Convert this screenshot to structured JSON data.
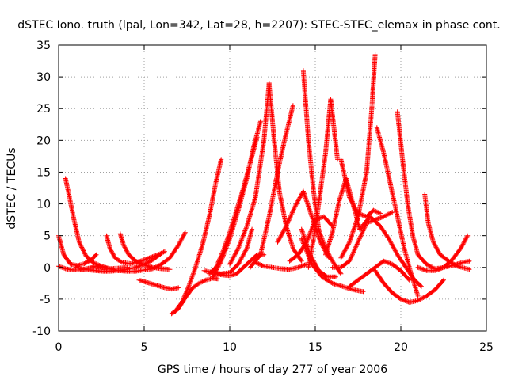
{
  "chart_data": {
    "type": "scatter",
    "title": "dSTEC Iono. truth (lpal, Lon=342, Lat=28, h=2207): STEC-STEC_elemax in phase cont.",
    "xlabel": "GPS time / hours of day 277 of year 2006",
    "ylabel": "dSTEC  / TECUs",
    "xlim": [
      0,
      25
    ],
    "ylim": [
      -10,
      35
    ],
    "xticks": [
      "0",
      "5",
      "10",
      "15",
      "20",
      "25"
    ],
    "yticks": [
      "-10",
      "-5",
      "0",
      "5",
      "10",
      "15",
      "20",
      "25",
      "30",
      "35"
    ],
    "grid": true,
    "marker": "+",
    "color": "#ff0000",
    "series": [
      {
        "x": [
          0.0,
          0.3,
          0.7,
          1.1,
          1.5,
          1.9,
          2.2
        ],
        "y": [
          5.0,
          2.0,
          0.5,
          0.3,
          0.6,
          1.2,
          2.0
        ]
      },
      {
        "x": [
          0.4,
          0.6,
          0.9,
          1.2,
          1.6,
          2.0,
          2.5,
          3.0,
          3.5,
          4.0
        ],
        "y": [
          14.0,
          11.5,
          7.5,
          4.0,
          1.8,
          0.8,
          0.2,
          -0.2,
          -0.1,
          0.0
        ]
      },
      {
        "x": [
          0.0,
          0.4,
          0.8,
          1.2,
          1.6,
          2.0
        ],
        "y": [
          0.2,
          -0.2,
          -0.4,
          -0.4,
          -0.2,
          0.0
        ]
      },
      {
        "x": [
          1.0,
          1.4,
          1.8,
          2.2,
          2.6,
          3.0,
          3.5,
          4.0,
          4.5,
          5.0,
          5.5,
          6.0
        ],
        "y": [
          0.0,
          -0.3,
          -0.4,
          -0.5,
          -0.6,
          -0.6,
          -0.5,
          -0.3,
          0.0,
          0.5,
          1.2,
          2.2
        ]
      },
      {
        "x": [
          2.8,
          3.0,
          3.3,
          3.7,
          4.2,
          4.8,
          5.3,
          5.8,
          6.2
        ],
        "y": [
          5.0,
          3.0,
          1.5,
          0.8,
          0.6,
          1.0,
          1.5,
          2.0,
          2.5
        ]
      },
      {
        "x": [
          3.6,
          3.8,
          4.1,
          4.5,
          5.0,
          5.5,
          6.0,
          6.5
        ],
        "y": [
          5.3,
          3.5,
          2.0,
          1.0,
          0.4,
          0.0,
          -0.2,
          -0.3
        ]
      },
      {
        "x": [
          2.0,
          2.5,
          3.0,
          3.5,
          4.0,
          4.5,
          5.0,
          5.5,
          6.0,
          6.5,
          7.0,
          7.4
        ],
        "y": [
          0.2,
          0.0,
          -0.2,
          -0.5,
          -0.6,
          -0.6,
          -0.4,
          -0.2,
          0.5,
          1.5,
          3.5,
          5.5
        ]
      },
      {
        "x": [
          4.7,
          5.2,
          5.7,
          6.2,
          6.6,
          7.0
        ],
        "y": [
          -2.0,
          -2.4,
          -2.8,
          -3.2,
          -3.4,
          -3.2
        ]
      },
      {
        "x": [
          6.6,
          7.0,
          7.4,
          7.8,
          8.2,
          8.6,
          9.0,
          9.3
        ],
        "y": [
          -7.3,
          -6.5,
          -4.8,
          -3.3,
          -2.5,
          -2.0,
          -1.7,
          -1.8
        ]
      },
      {
        "x": [
          6.8,
          7.2,
          7.6,
          8.0,
          8.4,
          8.8,
          9.2,
          9.5
        ],
        "y": [
          -7.0,
          -5.5,
          -3.0,
          0.0,
          3.5,
          8.0,
          13.5,
          17.0
        ]
      },
      {
        "x": [
          8.5,
          9.0,
          9.5,
          10.0,
          10.5,
          11.0,
          11.3
        ],
        "y": [
          -0.5,
          -0.8,
          -1.0,
          -0.8,
          0.5,
          3.0,
          6.0
        ]
      },
      {
        "x": [
          9.2,
          9.6,
          10.0,
          10.4,
          10.8,
          11.2,
          11.6,
          12.0
        ],
        "y": [
          -1.0,
          -1.2,
          -1.3,
          -1.0,
          0.0,
          1.0,
          2.0,
          2.0
        ]
      },
      {
        "x": [
          9.0,
          9.5,
          10.0,
          10.5,
          11.0,
          11.4,
          11.8
        ],
        "y": [
          -1.5,
          1.0,
          4.5,
          9.0,
          14.0,
          19.0,
          23.0
        ]
      },
      {
        "x": [
          8.8,
          9.2,
          9.6,
          10.0,
          10.4,
          10.8,
          11.2,
          11.6
        ],
        "y": [
          -1.0,
          0.0,
          2.5,
          5.5,
          9.0,
          12.5,
          16.5,
          20.5
        ]
      },
      {
        "x": [
          10.0,
          10.5,
          11.0,
          11.5,
          12.0,
          12.3
        ],
        "y": [
          0.5,
          3.0,
          6.5,
          11.0,
          20.0,
          29.0
        ]
      },
      {
        "x": [
          12.3,
          12.6,
          12.9,
          13.3,
          13.7,
          14.2
        ],
        "y": [
          29.0,
          20.0,
          12.0,
          6.5,
          3.0,
          1.0
        ]
      },
      {
        "x": [
          11.2,
          11.8,
          12.3,
          12.8,
          13.2,
          13.7
        ],
        "y": [
          0.0,
          2.0,
          8.0,
          15.0,
          20.0,
          25.5
        ]
      },
      {
        "x": [
          11.5,
          12.0,
          12.5,
          13.0,
          13.5,
          14.0,
          14.5
        ],
        "y": [
          0.8,
          0.2,
          0.0,
          -0.2,
          -0.3,
          0.0,
          0.5
        ]
      },
      {
        "x": [
          12.8,
          13.3,
          13.8,
          14.3,
          14.8,
          15.3,
          15.8
        ],
        "y": [
          4.0,
          6.5,
          9.5,
          12.0,
          8.0,
          4.0,
          1.5
        ]
      },
      {
        "x": [
          14.3,
          14.6,
          14.9,
          15.2,
          15.6,
          16.0,
          16.5
        ],
        "y": [
          31.0,
          20.0,
          12.0,
          6.0,
          3.0,
          1.0,
          -1.0
        ]
      },
      {
        "x": [
          14.2,
          14.8,
          15.4,
          16.0,
          16.6,
          17.2,
          17.8
        ],
        "y": [
          4.5,
          0.5,
          -1.5,
          -2.5,
          -3.0,
          -3.5,
          -3.8
        ]
      },
      {
        "x": [
          14.2,
          14.7,
          15.2,
          15.7,
          16.2
        ],
        "y": [
          6.0,
          2.0,
          -0.5,
          -1.5,
          -1.5
        ]
      },
      {
        "x": [
          14.6,
          15.0,
          15.3,
          15.6,
          15.9,
          16.3
        ],
        "y": [
          0.0,
          6.0,
          12.0,
          18.0,
          26.5,
          17.0
        ]
      },
      {
        "x": [
          15.6,
          16.0,
          16.4,
          16.8,
          17.2,
          17.6
        ],
        "y": [
          2.0,
          5.5,
          10.5,
          14.0,
          10.0,
          6.0
        ]
      },
      {
        "x": [
          13.5,
          14.0,
          14.5,
          15.0,
          15.5,
          16.0
        ],
        "y": [
          1.0,
          2.0,
          4.0,
          7.5,
          8.0,
          6.5
        ]
      },
      {
        "x": [
          16.5,
          17.0,
          17.5,
          18.0,
          18.4,
          18.8
        ],
        "y": [
          17.0,
          11.0,
          8.5,
          8.0,
          9.0,
          8.5
        ]
      },
      {
        "x": [
          16.0,
          16.5,
          17.0,
          17.5,
          18.0,
          18.5,
          19.0,
          19.5
        ],
        "y": [
          0.0,
          0.0,
          1.0,
          4.0,
          7.0,
          7.5,
          8.0,
          8.7
        ]
      },
      {
        "x": [
          16.5,
          17.0,
          17.5,
          18.0,
          18.3,
          18.5
        ],
        "y": [
          1.5,
          4.0,
          8.0,
          15.0,
          25.0,
          33.5
        ]
      },
      {
        "x": [
          17.0,
          17.5,
          18.0,
          18.5,
          19.0,
          19.5,
          20.0,
          20.5
        ],
        "y": [
          -3.0,
          -2.0,
          -1.0,
          0.0,
          1.0,
          0.5,
          -0.5,
          -2.0
        ]
      },
      {
        "x": [
          18.6,
          19.0,
          19.4,
          19.8,
          20.2,
          20.6,
          21.0
        ],
        "y": [
          22.0,
          18.0,
          13.0,
          8.0,
          3.0,
          -1.0,
          -4.5
        ]
      },
      {
        "x": [
          17.6,
          18.2,
          18.8,
          19.3,
          19.8,
          20.3,
          20.8,
          21.2
        ],
        "y": [
          6.0,
          8.0,
          6.5,
          4.5,
          2.0,
          0.0,
          -2.0,
          -3.0
        ]
      },
      {
        "x": [
          19.8,
          20.1,
          20.4,
          20.7,
          21.0,
          21.5,
          22.0,
          22.5,
          23.0,
          23.5,
          24.0
        ],
        "y": [
          24.5,
          17.0,
          10.0,
          5.0,
          2.0,
          0.5,
          -0.2,
          0.0,
          0.3,
          0.7,
          1.0
        ]
      },
      {
        "x": [
          18.5,
          19.0,
          19.5,
          20.0,
          20.5,
          21.0,
          21.5,
          22.0,
          22.5
        ],
        "y": [
          -0.5,
          -2.5,
          -4.0,
          -5.0,
          -5.5,
          -5.2,
          -4.5,
          -3.5,
          -2.0
        ]
      },
      {
        "x": [
          21.4,
          21.6,
          21.9,
          22.3,
          22.8,
          23.3,
          24.0
        ],
        "y": [
          11.5,
          7.0,
          4.0,
          2.0,
          1.0,
          0.2,
          -0.3
        ]
      },
      {
        "x": [
          21.0,
          21.5,
          22.0,
          22.5,
          23.0,
          23.5,
          23.9
        ],
        "y": [
          0.0,
          -0.5,
          -0.5,
          0.0,
          1.2,
          3.0,
          5.0
        ]
      }
    ]
  }
}
